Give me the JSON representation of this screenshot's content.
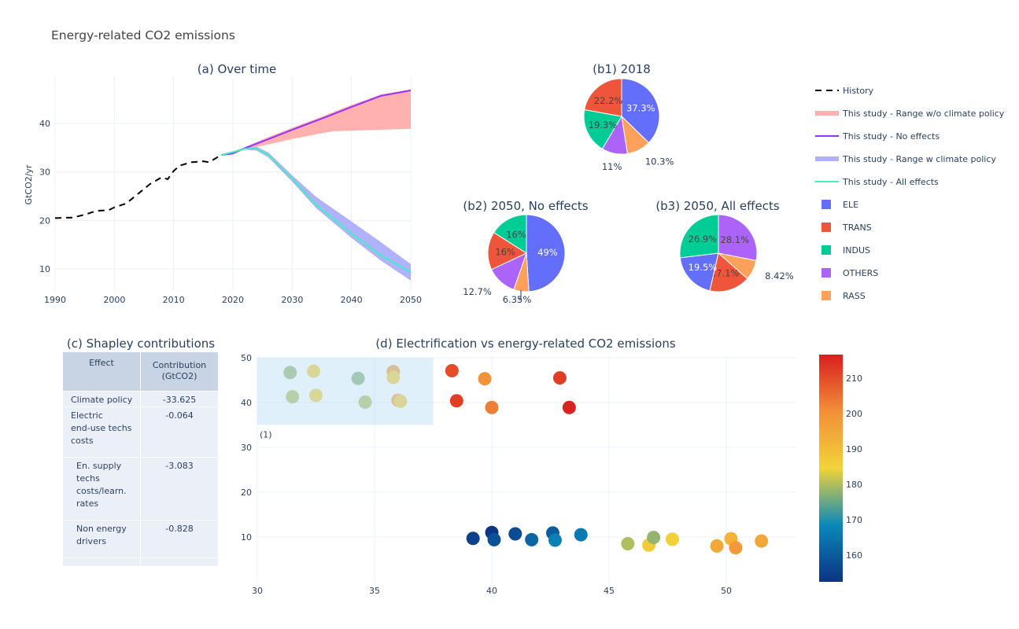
{
  "title": "Energy-related CO2 emissions",
  "colors": {
    "ELE": "#636efa",
    "TRANS": "#ef553b",
    "INDUS": "#00cc96",
    "OTHERS": "#ab63fa",
    "RASS": "#ffa15a",
    "history": "#000000",
    "range_no_policy": "#ffb1b0",
    "no_effects": "#9b30ff",
    "range_policy": "#b0b2fb",
    "all_effects": "#40f0c0"
  },
  "legend": {
    "position": "right",
    "items": [
      {
        "label": "History",
        "symbol": "dashed-line",
        "color": "#000000"
      },
      {
        "label": "This study - Range w/o climate policy",
        "symbol": "band",
        "color": "#ffb1b0"
      },
      {
        "label": "This study - No effects",
        "symbol": "line",
        "color": "#9b30ff"
      },
      {
        "label": "This study - Range w climate policy",
        "symbol": "band",
        "color": "#b0b2fb"
      },
      {
        "label": "This study - All effects",
        "symbol": "line",
        "color": "#40f0c0"
      },
      {
        "label": "ELE",
        "symbol": "square",
        "color": "#636efa"
      },
      {
        "label": "TRANS",
        "symbol": "square",
        "color": "#ef553b"
      },
      {
        "label": "INDUS",
        "symbol": "square",
        "color": "#00cc96"
      },
      {
        "label": "OTHERS",
        "symbol": "square",
        "color": "#ab63fa"
      },
      {
        "label": "RASS",
        "symbol": "square",
        "color": "#ffa15a"
      }
    ]
  },
  "chart_data": [
    {
      "type": "line",
      "title": "(a) Over time",
      "xlabel": "",
      "ylabel": "GtCO2/yr",
      "xlim": [
        1990,
        2050
      ],
      "ylim": [
        5.5,
        49.5
      ],
      "grid": true,
      "x_ticks": [
        "1990",
        "2000",
        "2010",
        "2020",
        "2030",
        "2040",
        "2050"
      ],
      "y_ticks": [
        "10",
        "20",
        "30",
        "40"
      ],
      "series": [
        {
          "name": "History",
          "style": "dash",
          "x": [
            1990,
            1993,
            1995,
            1997,
            1999,
            2000,
            2002,
            2004,
            2006,
            2008,
            2009,
            2010,
            2011,
            2013,
            2015,
            2016,
            2018
          ],
          "y": [
            20.5,
            20.6,
            21.2,
            22.0,
            22.1,
            22.7,
            23.5,
            25.5,
            27.5,
            28.9,
            28.5,
            30.2,
            31.3,
            32.0,
            32.2,
            32.0,
            33.5
          ]
        },
        {
          "name": "This study - Range w/o climate policy",
          "style": "band",
          "x": [
            2018,
            2020,
            2022,
            2025,
            2030,
            2035,
            2037,
            2040,
            2045,
            2050
          ],
          "upper": [
            33.6,
            34.0,
            35.1,
            36.7,
            39.1,
            41.4,
            42.4,
            43.8,
            46.0,
            47.0
          ],
          "lower": [
            33.4,
            33.7,
            34.8,
            35.4,
            36.8,
            38.0,
            38.4,
            38.5,
            38.7,
            38.9
          ]
        },
        {
          "name": "This study - No effects",
          "style": "line",
          "x": [
            2018,
            2020,
            2022,
            2025,
            2030,
            2035,
            2040,
            2045,
            2050
          ],
          "y": [
            33.5,
            33.8,
            34.9,
            36.3,
            38.7,
            41.0,
            43.4,
            45.7,
            46.8
          ]
        },
        {
          "name": "This study - Range w climate policy",
          "style": "band",
          "x": [
            2018,
            2020,
            2022,
            2024,
            2026,
            2030,
            2034,
            2040,
            2045,
            2050
          ],
          "upper": [
            33.6,
            34.2,
            35.1,
            35.2,
            34.0,
            29.3,
            24.9,
            19.8,
            15.5,
            11.0
          ],
          "lower": [
            33.4,
            33.9,
            34.6,
            34.4,
            33.0,
            28.0,
            22.6,
            16.4,
            11.7,
            7.6
          ]
        },
        {
          "name": "This study - All effects",
          "style": "line",
          "x": [
            2018,
            2020,
            2022,
            2024,
            2026,
            2028,
            2030,
            2034,
            2040,
            2045,
            2050
          ],
          "y": [
            33.5,
            34.1,
            34.8,
            34.8,
            33.5,
            31.0,
            28.6,
            23.3,
            17.3,
            12.8,
            9.3
          ]
        }
      ]
    },
    {
      "type": "pie",
      "title": "(b1) 2018",
      "direction": "clockwise",
      "labels": [
        "ELE",
        "RASS",
        "OTHERS",
        "INDUS",
        "TRANS"
      ],
      "values": [
        37.3,
        10.3,
        11,
        19.3,
        22.2
      ],
      "text": [
        "37.3%",
        "10.3%",
        "11%",
        "19.3%",
        "22.2%"
      ]
    },
    {
      "type": "pie",
      "title": "(b2) 2050, No effects",
      "direction": "clockwise",
      "labels": [
        "ELE",
        "RASS",
        "OTHERS",
        "TRANS",
        "INDUS"
      ],
      "values": [
        49,
        6.35,
        12.7,
        16,
        16
      ],
      "text": [
        "49%",
        "6.35%",
        "12.7%",
        "16%",
        "16%"
      ]
    },
    {
      "type": "pie",
      "title": "(b3) 2050, All effects",
      "direction": "clockwise",
      "labels": [
        "OTHERS",
        "RASS",
        "TRANS",
        "ELE",
        "INDUS"
      ],
      "values": [
        28.1,
        8.42,
        17.1,
        19.5,
        26.9
      ],
      "text": [
        "28.1%",
        "8.42%",
        "17.1%",
        "19.5%",
        "26.9%"
      ]
    },
    {
      "type": "table",
      "title": "(c) Shapley contributions",
      "columns": [
        [
          "Effect"
        ],
        [
          "Contribution",
          "(GtCO2)"
        ]
      ],
      "rows": [
        [
          [
            "Climate policy"
          ],
          [
            "-33.625"
          ]
        ],
        [
          [
            "Electric",
            "end-use techs",
            "costs"
          ],
          [
            "-0.064"
          ]
        ],
        [
          [
            "En. supply",
            "techs",
            "costs/learn.",
            "rates"
          ],
          [
            "-3.083"
          ]
        ],
        [
          [
            "Non energy",
            "drivers"
          ],
          [
            "-0.828"
          ]
        ],
        [
          [
            ""
          ],
          [
            ""
          ]
        ]
      ]
    },
    {
      "type": "scatter",
      "title": "(d) Electrification vs energy-related CO2 emissions",
      "xlabel": "",
      "ylabel": "",
      "xlim": [
        30,
        53
      ],
      "ylim": [
        0,
        50.5
      ],
      "grid": true,
      "x_ticks": [
        "30",
        "35",
        "40",
        "45",
        "50"
      ],
      "y_ticks": [
        "10",
        "20",
        "30",
        "40",
        "50"
      ],
      "colorscale": "Portland",
      "color_range": [
        152.4,
        216.7
      ],
      "colorbar_ticks": [
        "160",
        "170",
        "180",
        "190",
        "200",
        "210"
      ],
      "shape": {
        "x0": 30,
        "x1": 37.5,
        "y0": 35,
        "y1": 50,
        "label": "(1)"
      },
      "points": [
        {
          "x": 31.4,
          "y": 46.7,
          "c": 178
        },
        {
          "x": 32.4,
          "y": 47.0,
          "c": 186
        },
        {
          "x": 34.3,
          "y": 45.4,
          "c": 177
        },
        {
          "x": 35.8,
          "y": 46.9,
          "c": 198
        },
        {
          "x": 35.8,
          "y": 45.6,
          "c": 186
        },
        {
          "x": 31.5,
          "y": 41.3,
          "c": 180
        },
        {
          "x": 32.5,
          "y": 41.6,
          "c": 186
        },
        {
          "x": 34.6,
          "y": 40.1,
          "c": 180
        },
        {
          "x": 36.0,
          "y": 40.5,
          "c": 198
        },
        {
          "x": 36.1,
          "y": 40.3,
          "c": 187
        },
        {
          "x": 38.3,
          "y": 47.1,
          "c": 210
        },
        {
          "x": 39.7,
          "y": 45.3,
          "c": 200
        },
        {
          "x": 42.9,
          "y": 45.5,
          "c": 212
        },
        {
          "x": 38.5,
          "y": 40.4,
          "c": 212
        },
        {
          "x": 40.0,
          "y": 38.9,
          "c": 203
        },
        {
          "x": 43.3,
          "y": 38.9,
          "c": 216
        },
        {
          "x": 39.2,
          "y": 9.7,
          "c": 155
        },
        {
          "x": 40.0,
          "y": 11.0,
          "c": 153
        },
        {
          "x": 40.1,
          "y": 9.4,
          "c": 158
        },
        {
          "x": 41.0,
          "y": 10.7,
          "c": 157
        },
        {
          "x": 41.7,
          "y": 9.4,
          "c": 162
        },
        {
          "x": 42.6,
          "y": 10.9,
          "c": 160
        },
        {
          "x": 42.7,
          "y": 9.3,
          "c": 167
        },
        {
          "x": 43.8,
          "y": 10.5,
          "c": 166
        },
        {
          "x": 45.8,
          "y": 8.5,
          "c": 180
        },
        {
          "x": 46.7,
          "y": 8.2,
          "c": 187
        },
        {
          "x": 46.9,
          "y": 9.9,
          "c": 178
        },
        {
          "x": 47.7,
          "y": 9.5,
          "c": 185
        },
        {
          "x": 49.6,
          "y": 8.0,
          "c": 195
        },
        {
          "x": 50.2,
          "y": 9.6,
          "c": 192
        },
        {
          "x": 50.4,
          "y": 7.6,
          "c": 198
        },
        {
          "x": 51.5,
          "y": 9.1,
          "c": 195
        }
      ]
    }
  ]
}
